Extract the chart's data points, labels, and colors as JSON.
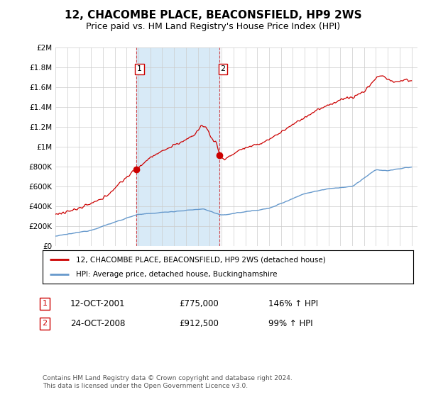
{
  "title": "12, CHACOMBE PLACE, BEACONSFIELD, HP9 2WS",
  "subtitle": "Price paid vs. HM Land Registry's House Price Index (HPI)",
  "title_fontsize": 11,
  "subtitle_fontsize": 9,
  "xlim": [
    1995,
    2025.5
  ],
  "ylim": [
    0,
    2000000
  ],
  "yticks": [
    0,
    200000,
    400000,
    600000,
    800000,
    1000000,
    1200000,
    1400000,
    1600000,
    1800000,
    2000000
  ],
  "ytick_labels": [
    "£0",
    "£200K",
    "£400K",
    "£600K",
    "£800K",
    "£1M",
    "£1.2M",
    "£1.4M",
    "£1.6M",
    "£1.8M",
    "£2M"
  ],
  "xticks": [
    1995,
    1996,
    1997,
    1998,
    1999,
    2000,
    2001,
    2002,
    2003,
    2004,
    2005,
    2006,
    2007,
    2008,
    2009,
    2010,
    2011,
    2012,
    2013,
    2014,
    2015,
    2016,
    2017,
    2018,
    2019,
    2020,
    2021,
    2022,
    2023,
    2024,
    2025
  ],
  "red_line_color": "#cc0000",
  "blue_line_color": "#6699cc",
  "shade_color": "#d8eaf7",
  "marker_color": "#cc0000",
  "sale1_x": 2001.79,
  "sale1_y": 775000,
  "sale2_x": 2008.81,
  "sale2_y": 912500,
  "shade_start": 2001.79,
  "shade_end": 2008.81,
  "legend_line1": "12, CHACOMBE PLACE, BEACONSFIELD, HP9 2WS (detached house)",
  "legend_line2": "HPI: Average price, detached house, Buckinghamshire",
  "info1_label": "1",
  "info1_date": "12-OCT-2001",
  "info1_price": "£775,000",
  "info1_hpi": "146% ↑ HPI",
  "info2_label": "2",
  "info2_date": "24-OCT-2008",
  "info2_price": "£912,500",
  "info2_hpi": "99% ↑ HPI",
  "footer": "Contains HM Land Registry data © Crown copyright and database right 2024.\nThis data is licensed under the Open Government Licence v3.0.",
  "background_color": "#ffffff",
  "grid_color": "#cccccc"
}
